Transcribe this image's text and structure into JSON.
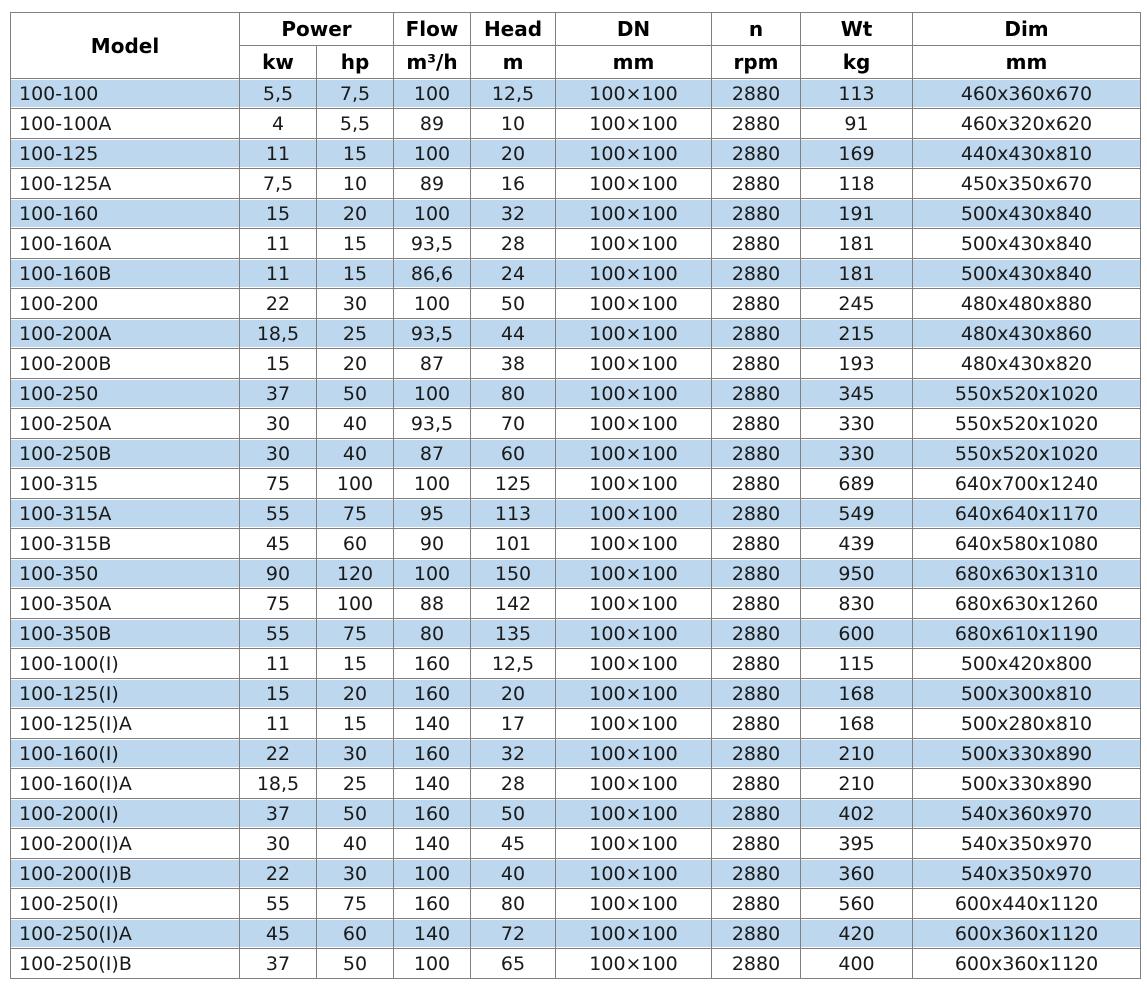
{
  "table": {
    "header_row1": {
      "model": "Model",
      "power": "Power",
      "flow": "Flow",
      "head": "Head",
      "dn": "DN",
      "n": "n",
      "wt": "Wt",
      "dim": "Dim"
    },
    "header_row2": {
      "kw": "kw",
      "hp": "hp",
      "flow_unit": "m³/h",
      "head_unit": "m",
      "dn_unit": "mm",
      "n_unit": "rpm",
      "wt_unit": "kg",
      "dim_unit": "mm"
    }
  },
  "colors": {
    "row_stripe": "#BDD7EE",
    "row_plain": "#ffffff",
    "border": "#808080",
    "header_text": "#000000",
    "body_text": "#1a1a1a"
  },
  "chart_data": {
    "type": "table",
    "title": "Pump model specification table",
    "column_groups": [
      {
        "label": "Power",
        "columns": [
          "kw",
          "hp"
        ]
      }
    ],
    "columns": [
      {
        "label": "Model",
        "unit": ""
      },
      {
        "label": "Power",
        "unit": "kw"
      },
      {
        "label": "Power",
        "unit": "hp"
      },
      {
        "label": "Flow",
        "unit": "m³/h"
      },
      {
        "label": "Head",
        "unit": "m"
      },
      {
        "label": "DN",
        "unit": "mm"
      },
      {
        "label": "n",
        "unit": "rpm"
      },
      {
        "label": "Wt",
        "unit": "kg"
      },
      {
        "label": "Dim",
        "unit": "mm"
      }
    ],
    "rows": [
      [
        "100-100",
        "5,5",
        "7,5",
        "100",
        "12,5",
        "100×100",
        "2880",
        "113",
        "460x360x670"
      ],
      [
        "100-100A",
        "4",
        "5,5",
        "89",
        "10",
        "100×100",
        "2880",
        "91",
        "460x320x620"
      ],
      [
        "100-125",
        "11",
        "15",
        "100",
        "20",
        "100×100",
        "2880",
        "169",
        "440x430x810"
      ],
      [
        "100-125A",
        "7,5",
        "10",
        "89",
        "16",
        "100×100",
        "2880",
        "118",
        "450x350x670"
      ],
      [
        "100-160",
        "15",
        "20",
        "100",
        "32",
        "100×100",
        "2880",
        "191",
        "500x430x840"
      ],
      [
        "100-160A",
        "11",
        "15",
        "93,5",
        "28",
        "100×100",
        "2880",
        "181",
        "500x430x840"
      ],
      [
        "100-160B",
        "11",
        "15",
        "86,6",
        "24",
        "100×100",
        "2880",
        "181",
        "500x430x840"
      ],
      [
        "100-200",
        "22",
        "30",
        "100",
        "50",
        "100×100",
        "2880",
        "245",
        "480x480x880"
      ],
      [
        "100-200A",
        "18,5",
        "25",
        "93,5",
        "44",
        "100×100",
        "2880",
        "215",
        "480x430x860"
      ],
      [
        "100-200B",
        "15",
        "20",
        "87",
        "38",
        "100×100",
        "2880",
        "193",
        "480x430x820"
      ],
      [
        "100-250",
        "37",
        "50",
        "100",
        "80",
        "100×100",
        "2880",
        "345",
        "550x520x1020"
      ],
      [
        "100-250A",
        "30",
        "40",
        "93,5",
        "70",
        "100×100",
        "2880",
        "330",
        "550x520x1020"
      ],
      [
        "100-250B",
        "30",
        "40",
        "87",
        "60",
        "100×100",
        "2880",
        "330",
        "550x520x1020"
      ],
      [
        "100-315",
        "75",
        "100",
        "100",
        "125",
        "100×100",
        "2880",
        "689",
        "640x700x1240"
      ],
      [
        "100-315A",
        "55",
        "75",
        "95",
        "113",
        "100×100",
        "2880",
        "549",
        "640x640x1170"
      ],
      [
        "100-315B",
        "45",
        "60",
        "90",
        "101",
        "100×100",
        "2880",
        "439",
        "640x580x1080"
      ],
      [
        "100-350",
        "90",
        "120",
        "100",
        "150",
        "100×100",
        "2880",
        "950",
        "680x630x1310"
      ],
      [
        "100-350A",
        "75",
        "100",
        "88",
        "142",
        "100×100",
        "2880",
        "830",
        "680x630x1260"
      ],
      [
        "100-350B",
        "55",
        "75",
        "80",
        "135",
        "100×100",
        "2880",
        "600",
        "680x610x1190"
      ],
      [
        "100-100(I)",
        "11",
        "15",
        "160",
        "12,5",
        "100×100",
        "2880",
        "115",
        "500x420x800"
      ],
      [
        "100-125(I)",
        "15",
        "20",
        "160",
        "20",
        "100×100",
        "2880",
        "168",
        "500x300x810"
      ],
      [
        "100-125(I)A",
        "11",
        "15",
        "140",
        "17",
        "100×100",
        "2880",
        "168",
        "500x280x810"
      ],
      [
        "100-160(I)",
        "22",
        "30",
        "160",
        "32",
        "100×100",
        "2880",
        "210",
        "500x330x890"
      ],
      [
        "100-160(I)A",
        "18,5",
        "25",
        "140",
        "28",
        "100×100",
        "2880",
        "210",
        "500x330x890"
      ],
      [
        "100-200(I)",
        "37",
        "50",
        "160",
        "50",
        "100×100",
        "2880",
        "402",
        "540x360x970"
      ],
      [
        "100-200(I)A",
        "30",
        "40",
        "140",
        "45",
        "100×100",
        "2880",
        "395",
        "540x350x970"
      ],
      [
        "100-200(I)B",
        "22",
        "30",
        "100",
        "40",
        "100×100",
        "2880",
        "360",
        "540x350x970"
      ],
      [
        "100-250(I)",
        "55",
        "75",
        "160",
        "80",
        "100×100",
        "2880",
        "560",
        "600x440x1120"
      ],
      [
        "100-250(I)A",
        "45",
        "60",
        "140",
        "72",
        "100×100",
        "2880",
        "420",
        "600x360x1120"
      ],
      [
        "100-250(I)B",
        "37",
        "50",
        "100",
        "65",
        "100×100",
        "2880",
        "400",
        "600x360x1120"
      ]
    ]
  }
}
